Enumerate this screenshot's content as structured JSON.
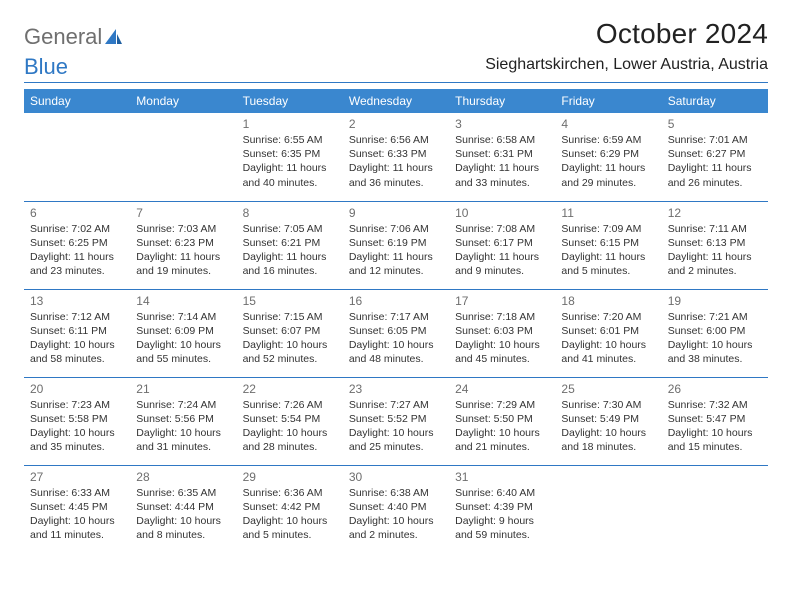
{
  "brand": {
    "part1": "General",
    "part2": "Blue"
  },
  "title": "October 2024",
  "location": "Sieghartskirchen, Lower Austria, Austria",
  "colors": {
    "header_bg": "#3a87cf",
    "header_text": "#ffffff",
    "rule": "#2f78c4",
    "daynum": "#6e6e6e",
    "body_text": "#333333",
    "brand_gray": "#6f6f6f",
    "brand_blue": "#2f78c4",
    "page_bg": "#ffffff"
  },
  "typography": {
    "title_fontsize_pt": 21,
    "location_fontsize_pt": 12,
    "weekday_fontsize_pt": 9,
    "daynum_fontsize_pt": 9,
    "cell_fontsize_pt": 8
  },
  "layout": {
    "columns": 7,
    "rows": 5,
    "col_width_pct": 14.285
  },
  "weekdays": [
    "Sunday",
    "Monday",
    "Tuesday",
    "Wednesday",
    "Thursday",
    "Friday",
    "Saturday"
  ],
  "weeks": [
    [
      null,
      null,
      {
        "n": "1",
        "sr": "Sunrise: 6:55 AM",
        "ss": "Sunset: 6:35 PM",
        "dl": "Daylight: 11 hours and 40 minutes."
      },
      {
        "n": "2",
        "sr": "Sunrise: 6:56 AM",
        "ss": "Sunset: 6:33 PM",
        "dl": "Daylight: 11 hours and 36 minutes."
      },
      {
        "n": "3",
        "sr": "Sunrise: 6:58 AM",
        "ss": "Sunset: 6:31 PM",
        "dl": "Daylight: 11 hours and 33 minutes."
      },
      {
        "n": "4",
        "sr": "Sunrise: 6:59 AM",
        "ss": "Sunset: 6:29 PM",
        "dl": "Daylight: 11 hours and 29 minutes."
      },
      {
        "n": "5",
        "sr": "Sunrise: 7:01 AM",
        "ss": "Sunset: 6:27 PM",
        "dl": "Daylight: 11 hours and 26 minutes."
      }
    ],
    [
      {
        "n": "6",
        "sr": "Sunrise: 7:02 AM",
        "ss": "Sunset: 6:25 PM",
        "dl": "Daylight: 11 hours and 23 minutes."
      },
      {
        "n": "7",
        "sr": "Sunrise: 7:03 AM",
        "ss": "Sunset: 6:23 PM",
        "dl": "Daylight: 11 hours and 19 minutes."
      },
      {
        "n": "8",
        "sr": "Sunrise: 7:05 AM",
        "ss": "Sunset: 6:21 PM",
        "dl": "Daylight: 11 hours and 16 minutes."
      },
      {
        "n": "9",
        "sr": "Sunrise: 7:06 AM",
        "ss": "Sunset: 6:19 PM",
        "dl": "Daylight: 11 hours and 12 minutes."
      },
      {
        "n": "10",
        "sr": "Sunrise: 7:08 AM",
        "ss": "Sunset: 6:17 PM",
        "dl": "Daylight: 11 hours and 9 minutes."
      },
      {
        "n": "11",
        "sr": "Sunrise: 7:09 AM",
        "ss": "Sunset: 6:15 PM",
        "dl": "Daylight: 11 hours and 5 minutes."
      },
      {
        "n": "12",
        "sr": "Sunrise: 7:11 AM",
        "ss": "Sunset: 6:13 PM",
        "dl": "Daylight: 11 hours and 2 minutes."
      }
    ],
    [
      {
        "n": "13",
        "sr": "Sunrise: 7:12 AM",
        "ss": "Sunset: 6:11 PM",
        "dl": "Daylight: 10 hours and 58 minutes."
      },
      {
        "n": "14",
        "sr": "Sunrise: 7:14 AM",
        "ss": "Sunset: 6:09 PM",
        "dl": "Daylight: 10 hours and 55 minutes."
      },
      {
        "n": "15",
        "sr": "Sunrise: 7:15 AM",
        "ss": "Sunset: 6:07 PM",
        "dl": "Daylight: 10 hours and 52 minutes."
      },
      {
        "n": "16",
        "sr": "Sunrise: 7:17 AM",
        "ss": "Sunset: 6:05 PM",
        "dl": "Daylight: 10 hours and 48 minutes."
      },
      {
        "n": "17",
        "sr": "Sunrise: 7:18 AM",
        "ss": "Sunset: 6:03 PM",
        "dl": "Daylight: 10 hours and 45 minutes."
      },
      {
        "n": "18",
        "sr": "Sunrise: 7:20 AM",
        "ss": "Sunset: 6:01 PM",
        "dl": "Daylight: 10 hours and 41 minutes."
      },
      {
        "n": "19",
        "sr": "Sunrise: 7:21 AM",
        "ss": "Sunset: 6:00 PM",
        "dl": "Daylight: 10 hours and 38 minutes."
      }
    ],
    [
      {
        "n": "20",
        "sr": "Sunrise: 7:23 AM",
        "ss": "Sunset: 5:58 PM",
        "dl": "Daylight: 10 hours and 35 minutes."
      },
      {
        "n": "21",
        "sr": "Sunrise: 7:24 AM",
        "ss": "Sunset: 5:56 PM",
        "dl": "Daylight: 10 hours and 31 minutes."
      },
      {
        "n": "22",
        "sr": "Sunrise: 7:26 AM",
        "ss": "Sunset: 5:54 PM",
        "dl": "Daylight: 10 hours and 28 minutes."
      },
      {
        "n": "23",
        "sr": "Sunrise: 7:27 AM",
        "ss": "Sunset: 5:52 PM",
        "dl": "Daylight: 10 hours and 25 minutes."
      },
      {
        "n": "24",
        "sr": "Sunrise: 7:29 AM",
        "ss": "Sunset: 5:50 PM",
        "dl": "Daylight: 10 hours and 21 minutes."
      },
      {
        "n": "25",
        "sr": "Sunrise: 7:30 AM",
        "ss": "Sunset: 5:49 PM",
        "dl": "Daylight: 10 hours and 18 minutes."
      },
      {
        "n": "26",
        "sr": "Sunrise: 7:32 AM",
        "ss": "Sunset: 5:47 PM",
        "dl": "Daylight: 10 hours and 15 minutes."
      }
    ],
    [
      {
        "n": "27",
        "sr": "Sunrise: 6:33 AM",
        "ss": "Sunset: 4:45 PM",
        "dl": "Daylight: 10 hours and 11 minutes."
      },
      {
        "n": "28",
        "sr": "Sunrise: 6:35 AM",
        "ss": "Sunset: 4:44 PM",
        "dl": "Daylight: 10 hours and 8 minutes."
      },
      {
        "n": "29",
        "sr": "Sunrise: 6:36 AM",
        "ss": "Sunset: 4:42 PM",
        "dl": "Daylight: 10 hours and 5 minutes."
      },
      {
        "n": "30",
        "sr": "Sunrise: 6:38 AM",
        "ss": "Sunset: 4:40 PM",
        "dl": "Daylight: 10 hours and 2 minutes."
      },
      {
        "n": "31",
        "sr": "Sunrise: 6:40 AM",
        "ss": "Sunset: 4:39 PM",
        "dl": "Daylight: 9 hours and 59 minutes."
      },
      null,
      null
    ]
  ]
}
